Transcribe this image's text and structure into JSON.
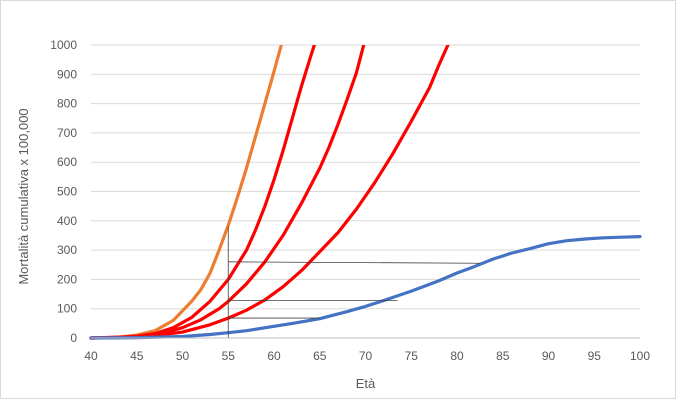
{
  "chart_data": {
    "type": "line",
    "xlabel": "Età",
    "ylabel": "Mortalità cumulativa x 100,000",
    "xlim": [
      40,
      100
    ],
    "ylim": [
      0,
      1000
    ],
    "x_ticks": [
      40,
      45,
      50,
      55,
      60,
      65,
      70,
      75,
      80,
      85,
      90,
      95,
      100
    ],
    "y_ticks": [
      0,
      100,
      200,
      300,
      400,
      500,
      600,
      700,
      800,
      900,
      1000
    ],
    "grid": "horizontal",
    "series": [
      {
        "color": "#ed7d31",
        "points": [
          [
            40,
            0
          ],
          [
            43,
            3
          ],
          [
            45,
            10
          ],
          [
            47,
            25
          ],
          [
            49,
            60
          ],
          [
            51,
            125
          ],
          [
            52,
            165
          ],
          [
            53,
            220
          ],
          [
            54,
            300
          ],
          [
            55,
            385
          ],
          [
            56,
            480
          ],
          [
            57,
            580
          ],
          [
            58,
            690
          ],
          [
            59,
            800
          ],
          [
            60,
            910
          ],
          [
            60.8,
            1000
          ]
        ]
      },
      {
        "color": "#ff0000",
        "points": [
          [
            40,
            0
          ],
          [
            43,
            2
          ],
          [
            45,
            6
          ],
          [
            47,
            15
          ],
          [
            49,
            35
          ],
          [
            51,
            70
          ],
          [
            53,
            125
          ],
          [
            55,
            200
          ],
          [
            57,
            300
          ],
          [
            58,
            370
          ],
          [
            59,
            450
          ],
          [
            60,
            540
          ],
          [
            61,
            640
          ],
          [
            62,
            750
          ],
          [
            63,
            860
          ],
          [
            64,
            960
          ],
          [
            64.4,
            1000
          ]
        ]
      },
      {
        "color": "#ff0000",
        "points": [
          [
            40,
            0
          ],
          [
            44,
            3
          ],
          [
            46,
            8
          ],
          [
            48,
            18
          ],
          [
            50,
            35
          ],
          [
            52,
            62
          ],
          [
            54,
            100
          ],
          [
            55,
            125
          ],
          [
            57,
            185
          ],
          [
            59,
            260
          ],
          [
            61,
            350
          ],
          [
            63,
            460
          ],
          [
            65,
            580
          ],
          [
            66,
            650
          ],
          [
            67,
            730
          ],
          [
            68,
            815
          ],
          [
            69,
            905
          ],
          [
            69.8,
            1000
          ]
        ]
      },
      {
        "color": "#ff0000",
        "points": [
          [
            40,
            0
          ],
          [
            44,
            2
          ],
          [
            47,
            8
          ],
          [
            50,
            20
          ],
          [
            53,
            45
          ],
          [
            55,
            68
          ],
          [
            57,
            95
          ],
          [
            59,
            130
          ],
          [
            61,
            175
          ],
          [
            63,
            230
          ],
          [
            65,
            295
          ],
          [
            67,
            360
          ],
          [
            69,
            440
          ],
          [
            71,
            530
          ],
          [
            73,
            630
          ],
          [
            75,
            740
          ],
          [
            77,
            855
          ],
          [
            78,
            930
          ],
          [
            79,
            1000
          ]
        ]
      },
      {
        "color": "#4472c4",
        "points": [
          [
            40,
            0
          ],
          [
            45,
            1
          ],
          [
            50,
            5
          ],
          [
            53,
            12
          ],
          [
            55,
            18
          ],
          [
            57,
            25
          ],
          [
            60,
            40
          ],
          [
            62,
            50
          ],
          [
            65,
            66
          ],
          [
            68,
            90
          ],
          [
            70,
            108
          ],
          [
            72,
            128
          ],
          [
            75,
            160
          ],
          [
            78,
            195
          ],
          [
            80,
            222
          ],
          [
            82,
            245
          ],
          [
            84,
            270
          ],
          [
            85,
            280
          ],
          [
            86,
            290
          ],
          [
            88,
            305
          ],
          [
            90,
            322
          ],
          [
            92,
            332
          ],
          [
            94,
            338
          ],
          [
            96,
            342
          ],
          [
            98,
            344
          ],
          [
            100,
            346
          ]
        ]
      }
    ],
    "guide_lines": [
      [
        [
          55,
          380
        ],
        [
          55,
          0
        ]
      ],
      [
        [
          55,
          260
        ],
        [
          82.5,
          255
        ]
      ],
      [
        [
          55,
          128
        ],
        [
          73.5,
          128
        ]
      ],
      [
        [
          55,
          68
        ],
        [
          65,
          68
        ]
      ]
    ]
  }
}
